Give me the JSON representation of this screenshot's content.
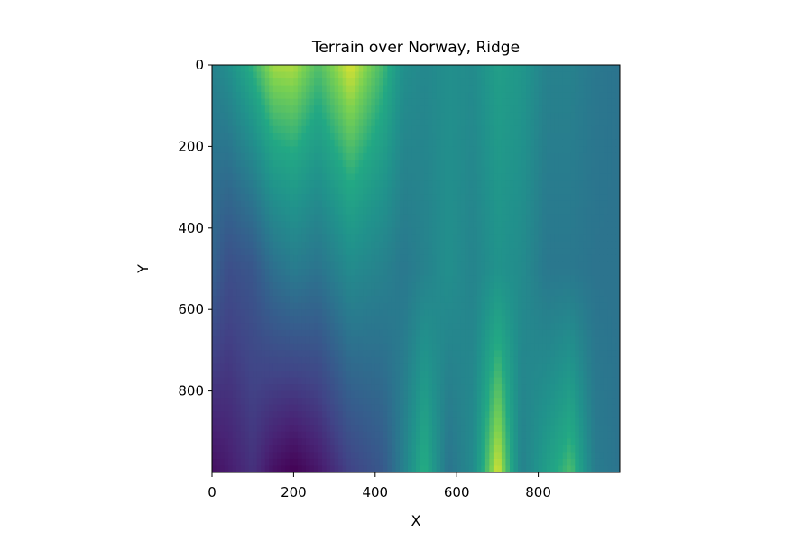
{
  "chart_data": {
    "type": "heatmap",
    "title": "Terrain over Norway, Ridge",
    "xlabel": "X",
    "ylabel": "Y",
    "xlim": [
      0,
      1000
    ],
    "ylim": [
      1000,
      0
    ],
    "x_ticks": [
      0,
      200,
      400,
      600,
      800
    ],
    "y_ticks": [
      0,
      200,
      400,
      600,
      800
    ],
    "x_tick_labels": [
      "0",
      "200",
      "400",
      "600",
      "800"
    ],
    "y_tick_labels": [
      "0",
      "200",
      "400",
      "600",
      "800"
    ],
    "colormap": "viridis",
    "value_range": [
      0,
      1
    ],
    "grid": false,
    "legend": "none",
    "field": {
      "x": [
        0,
        40,
        100,
        150,
        200,
        260,
        340,
        420,
        470,
        520,
        580,
        640,
        700,
        760,
        820,
        880,
        940,
        1000
      ],
      "y": [
        0,
        500,
        1000
      ],
      "values": [
        [
          0.55,
          0.62,
          0.78,
          0.92,
          0.93,
          0.82,
          0.97,
          0.8,
          0.62,
          0.58,
          0.62,
          0.6,
          0.7,
          0.66,
          0.55,
          0.55,
          0.5,
          0.48
        ],
        [
          0.4,
          0.3,
          0.34,
          0.46,
          0.52,
          0.48,
          0.6,
          0.55,
          0.5,
          0.55,
          0.62,
          0.56,
          0.64,
          0.6,
          0.5,
          0.5,
          0.48,
          0.48
        ],
        [
          0.05,
          0.1,
          0.18,
          0.06,
          0.0,
          0.08,
          0.25,
          0.35,
          0.55,
          0.78,
          0.48,
          0.6,
          0.98,
          0.55,
          0.7,
          0.82,
          0.52,
          0.48
        ]
      ]
    }
  }
}
